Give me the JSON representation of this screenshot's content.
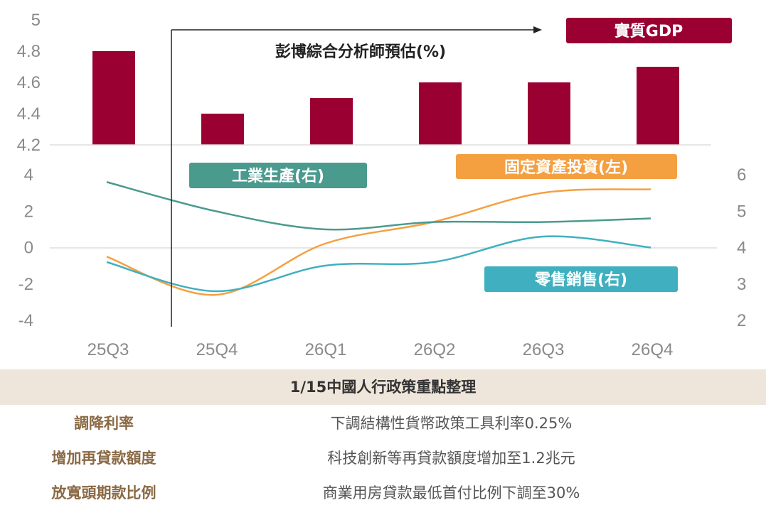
{
  "chart_data": [
    {
      "type": "bar",
      "categories": [
        "25Q3",
        "25Q4",
        "26Q1",
        "26Q2",
        "26Q3",
        "26Q4"
      ],
      "series": [
        {
          "name": "實質GDP",
          "values": [
            4.8,
            4.4,
            4.5,
            4.6,
            4.6,
            4.7
          ]
        }
      ],
      "yticks": [
        "5",
        "4.8",
        "4.6",
        "4.4",
        "4.2"
      ],
      "ylim": [
        4.2,
        5.0
      ],
      "annotation": "彭博綜合分析師預估(%)",
      "colors": {
        "bar": "#9b0033"
      }
    },
    {
      "type": "line",
      "categories": [
        "25Q3",
        "25Q4",
        "26Q1",
        "26Q2",
        "26Q3",
        "26Q4"
      ],
      "series": [
        {
          "name": "固定資產投資(左)",
          "axis": "left",
          "values": [
            -0.5,
            -2.6,
            0.2,
            1.4,
            3.0,
            3.2
          ],
          "color": "#f4a040"
        },
        {
          "name": "工業生產(右)",
          "axis": "right",
          "values": [
            5.8,
            5.0,
            4.5,
            4.7,
            4.7,
            4.8
          ],
          "color": "#4a9a8e"
        },
        {
          "name": "零售銷售(右)",
          "axis": "right",
          "values": [
            3.6,
            2.8,
            3.5,
            3.6,
            4.3,
            4.0
          ],
          "color": "#40b0c0"
        }
      ],
      "left_ticks": [
        "4",
        "2",
        "0",
        "-2",
        "-4"
      ],
      "left_ylim": [
        -4,
        4
      ],
      "right_ticks": [
        "6",
        "5",
        "4",
        "3",
        "2"
      ],
      "right_ylim": [
        2,
        6
      ]
    }
  ],
  "policy": {
    "title": "1/15中國人行政策重點整理",
    "rows": [
      {
        "item": "調降利率",
        "desc": "下調結構性貨幣政策工具利率0.25%"
      },
      {
        "item": "增加再貸款額度",
        "desc": "科技創新等再貸款額度增加至1.2兆元"
      },
      {
        "item": "放寬頭期款比例",
        "desc": "商業用房貸款最低首付比例下調至30%"
      }
    ]
  }
}
